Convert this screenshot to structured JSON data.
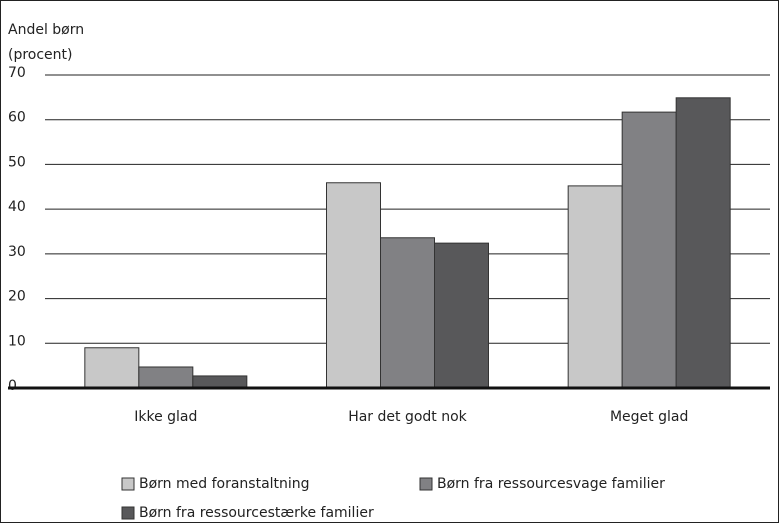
{
  "chart_data": {
    "type": "bar",
    "ylabel": [
      "Andel børn",
      "(procent)"
    ],
    "categories": [
      "Ikke glad",
      "Har det godt nok",
      "Meget glad"
    ],
    "series": [
      {
        "name": "Børn med foranstaltning",
        "color": "#c8c8c8",
        "values": [
          9,
          45.9,
          45.2
        ]
      },
      {
        "name": "Børn fra ressourcesvage familier",
        "color": "#818184",
        "values": [
          4.7,
          33.6,
          61.7
        ]
      },
      {
        "name": "Børn fra ressourcestærke familier",
        "color": "#58585a",
        "values": [
          2.7,
          32.4,
          64.9
        ]
      }
    ],
    "ylim": [
      0,
      70
    ],
    "yticks": [
      0,
      10,
      20,
      30,
      40,
      50,
      60,
      70
    ],
    "grid": true
  }
}
